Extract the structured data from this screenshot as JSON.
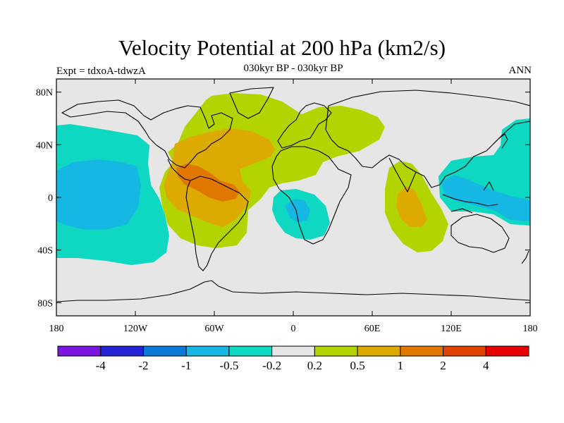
{
  "header": {
    "title": "Velocity Potential at 200 hPa (km2/s)",
    "left_label": "Expt = tdxoA-tdwzA",
    "center_label": "030kyr BP - 030kyr BP",
    "right_label": "ANN"
  },
  "map": {
    "projection": "cylindrical equidistant",
    "lon_range": [
      -180,
      180
    ],
    "lat_range": [
      -90,
      90
    ],
    "background_color": "#e6e6e6",
    "lat_ticks": [
      {
        "value": 80,
        "label": "80N"
      },
      {
        "value": 40,
        "label": "40N"
      },
      {
        "value": 0,
        "label": "0"
      },
      {
        "value": -40,
        "label": "40S"
      },
      {
        "value": -80,
        "label": "80S"
      }
    ],
    "lon_ticks": [
      {
        "value": -180,
        "label": "180"
      },
      {
        "value": -120,
        "label": "120W"
      },
      {
        "value": -60,
        "label": "60W"
      },
      {
        "value": 0,
        "label": "0"
      },
      {
        "value": 60,
        "label": "60E"
      },
      {
        "value": 120,
        "label": "120E"
      },
      {
        "value": 180,
        "label": "180"
      }
    ]
  },
  "colorbar": {
    "colors": [
      "#7a16e0",
      "#2424d6",
      "#0a7ad8",
      "#14b8e2",
      "#0ed8c2",
      "#e6e6e6",
      "#b4d400",
      "#dcaa00",
      "#e07800",
      "#e04200",
      "#e80000"
    ],
    "labels": [
      "-4",
      "-2",
      "-1",
      "-0.5",
      "-0.2",
      "0.2",
      "0.5",
      "1",
      "2",
      "4"
    ]
  }
}
